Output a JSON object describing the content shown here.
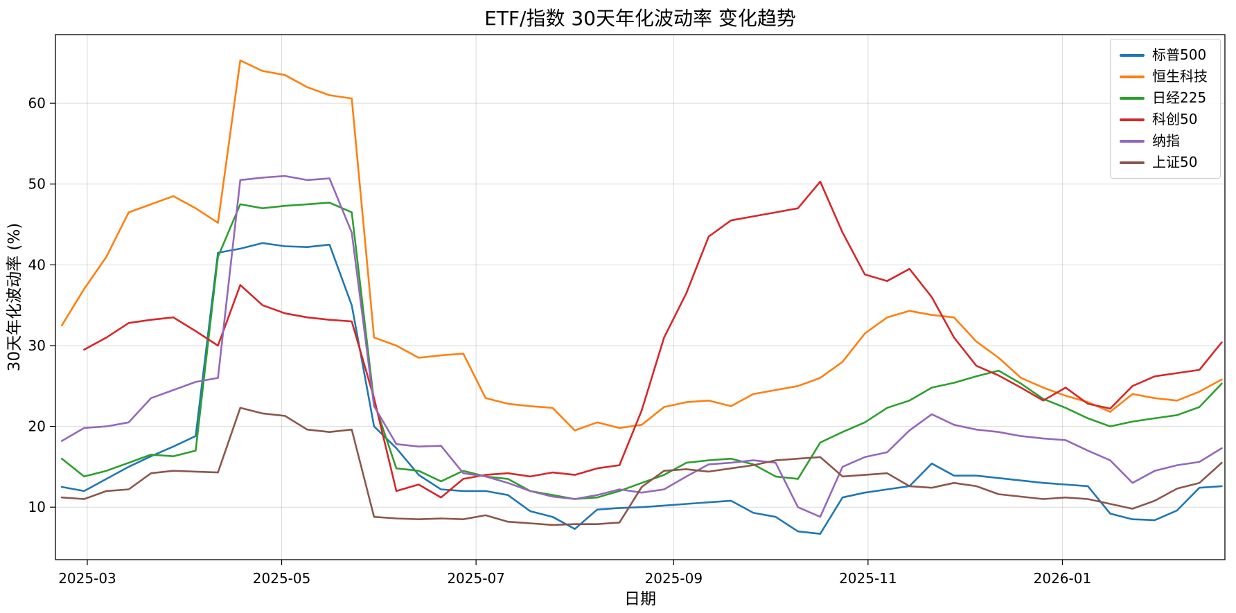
{
  "chart_data": {
    "type": "line",
    "title": "ETF/指数 30天年化波动率 变化趋势",
    "xlabel": "日期",
    "ylabel": "30天年化波动率 (%)",
    "grid": true,
    "legend_position": "upper right",
    "ylim": [
      3.5,
      68.5
    ],
    "y_ticks": [
      10,
      20,
      30,
      40,
      50,
      60
    ],
    "x_range": [
      "2025-02-19",
      "2026-02-21"
    ],
    "x_ticks": [
      "2025-03-01",
      "2025-05-01",
      "2025-07-01",
      "2025-09-01",
      "2025-11-01",
      "2026-01-01"
    ],
    "x_tick_labels": [
      "2025-03",
      "2025-05",
      "2025-07",
      "2025-09",
      "2025-11",
      "2026-01"
    ],
    "x": [
      "2025-02-21",
      "2025-02-28",
      "2025-03-07",
      "2025-03-14",
      "2025-03-21",
      "2025-03-28",
      "2025-04-04",
      "2025-04-11",
      "2025-04-18",
      "2025-04-25",
      "2025-05-02",
      "2025-05-09",
      "2025-05-16",
      "2025-05-23",
      "2025-05-30",
      "2025-06-06",
      "2025-06-13",
      "2025-06-20",
      "2025-06-27",
      "2025-07-04",
      "2025-07-11",
      "2025-07-18",
      "2025-07-25",
      "2025-08-01",
      "2025-08-08",
      "2025-08-15",
      "2025-08-22",
      "2025-08-29",
      "2025-09-05",
      "2025-09-12",
      "2025-09-19",
      "2025-09-26",
      "2025-10-03",
      "2025-10-10",
      "2025-10-17",
      "2025-10-24",
      "2025-10-31",
      "2025-11-07",
      "2025-11-14",
      "2025-11-21",
      "2025-11-28",
      "2025-12-05",
      "2025-12-12",
      "2025-12-19",
      "2025-12-26",
      "2026-01-02",
      "2026-01-09",
      "2026-01-16",
      "2026-01-23",
      "2026-01-30",
      "2026-02-06",
      "2026-02-13",
      "2026-02-20"
    ],
    "series": [
      {
        "name": "标普500",
        "color": "#1f77b4",
        "values": [
          12.5,
          12.0,
          13.5,
          15.0,
          16.3,
          17.5,
          18.8,
          41.5,
          42.0,
          42.7,
          42.3,
          42.2,
          42.5,
          35.0,
          20.0,
          17.3,
          14.0,
          12.2,
          12.0,
          12.0,
          11.5,
          9.5,
          8.8,
          7.3,
          9.7,
          9.9,
          10.0,
          10.2,
          10.4,
          10.6,
          10.8,
          9.3,
          8.8,
          7.0,
          6.7,
          11.2,
          11.8,
          12.2,
          12.6,
          15.4,
          13.9,
          13.9,
          13.6,
          13.3,
          13.0,
          12.8,
          12.6,
          9.2,
          8.5,
          8.4,
          9.6,
          12.4,
          12.6
        ]
      },
      {
        "name": "恒生科技",
        "color": "#ff7f0e",
        "values": [
          32.5,
          37.0,
          41.0,
          46.5,
          47.5,
          48.5,
          47.0,
          45.2,
          65.3,
          64.0,
          63.5,
          62.0,
          61.0,
          60.6,
          31.0,
          30.0,
          28.5,
          28.8,
          29.0,
          23.5,
          22.8,
          22.5,
          22.3,
          19.5,
          20.5,
          19.8,
          20.2,
          22.4,
          23.0,
          23.2,
          22.5,
          24.0,
          24.5,
          25.0,
          26.0,
          28.0,
          31.5,
          33.5,
          34.3,
          33.8,
          33.5,
          30.5,
          28.5,
          26.0,
          24.8,
          23.8,
          23.0,
          21.8,
          24.0,
          23.5,
          23.2,
          24.3,
          25.8
        ]
      },
      {
        "name": "日经225",
        "color": "#2ca02c",
        "values": [
          16.0,
          13.8,
          14.5,
          15.5,
          16.5,
          16.3,
          17.0,
          41.0,
          47.5,
          47.0,
          47.3,
          47.5,
          47.7,
          46.5,
          23.0,
          14.8,
          14.5,
          13.2,
          14.5,
          13.8,
          13.5,
          12.0,
          11.5,
          11.0,
          11.2,
          12.0,
          13.0,
          14.0,
          15.5,
          15.8,
          16.0,
          15.3,
          13.8,
          13.5,
          18.0,
          19.3,
          20.5,
          22.3,
          23.2,
          24.8,
          25.4,
          26.2,
          26.9,
          25.3,
          23.4,
          22.3,
          21.0,
          20.0,
          20.6,
          21.0,
          21.4,
          22.4,
          25.3
        ]
      },
      {
        "name": "科创50",
        "color": "#d62728",
        "values": [
          null,
          29.5,
          31.0,
          32.8,
          33.2,
          33.5,
          31.8,
          30.0,
          37.5,
          35.0,
          34.0,
          33.5,
          33.2,
          33.0,
          23.5,
          12.0,
          12.8,
          11.2,
          13.5,
          14.0,
          14.2,
          13.8,
          14.3,
          14.0,
          14.8,
          15.2,
          22.0,
          31.0,
          36.5,
          43.5,
          45.5,
          46.0,
          46.5,
          47.0,
          50.3,
          44.0,
          38.8,
          38.0,
          39.5,
          36.0,
          31.0,
          27.5,
          26.3,
          24.8,
          23.2,
          24.8,
          22.8,
          22.2,
          25.0,
          26.2,
          26.6,
          27.0,
          30.4
        ]
      },
      {
        "name": "纳指",
        "color": "#9467bd",
        "values": [
          18.2,
          19.8,
          20.0,
          20.5,
          23.5,
          24.5,
          25.5,
          26.0,
          50.5,
          50.8,
          51.0,
          50.5,
          50.7,
          44.0,
          22.5,
          17.8,
          17.5,
          17.6,
          14.2,
          13.8,
          13.0,
          12.0,
          11.3,
          11.0,
          11.5,
          12.2,
          11.8,
          12.2,
          13.8,
          15.3,
          15.5,
          15.8,
          15.5,
          10.0,
          8.8,
          15.0,
          16.2,
          16.8,
          19.5,
          21.5,
          20.2,
          19.6,
          19.3,
          18.8,
          18.5,
          18.3,
          17.0,
          15.8,
          13.0,
          14.5,
          15.2,
          15.6,
          17.3
        ]
      },
      {
        "name": "上证50",
        "color": "#8c564b",
        "values": [
          11.2,
          11.0,
          12.0,
          12.2,
          14.2,
          14.5,
          14.4,
          14.3,
          22.3,
          21.6,
          21.3,
          19.6,
          19.3,
          19.6,
          8.8,
          8.6,
          8.5,
          8.6,
          8.5,
          9.0,
          8.2,
          8.0,
          7.8,
          7.9,
          7.9,
          8.1,
          12.5,
          14.5,
          14.7,
          14.4,
          14.8,
          15.2,
          15.8,
          16.0,
          16.2,
          13.8,
          14.0,
          14.2,
          12.6,
          12.4,
          13.0,
          12.6,
          11.6,
          11.3,
          11.0,
          11.2,
          11.0,
          10.4,
          9.8,
          10.8,
          12.3,
          13.0,
          15.5
        ]
      }
    ]
  }
}
